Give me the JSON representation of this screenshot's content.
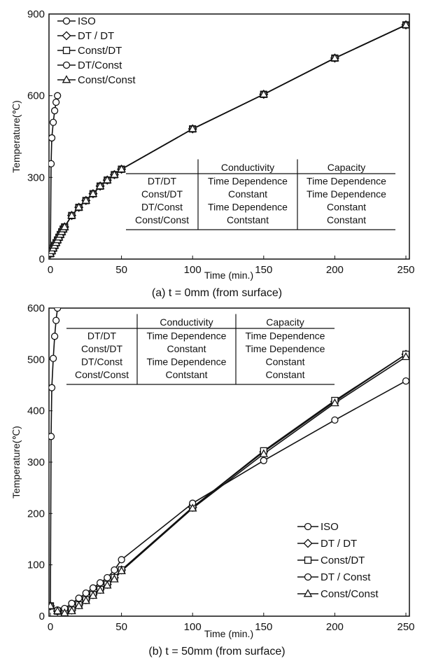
{
  "chart_data": [
    {
      "type": "line",
      "caption": "(a) t = 0mm (from surface)",
      "xlabel": "Time (min.)",
      "ylabel": "Temperature(℃)",
      "xlim": [
        0,
        250
      ],
      "ylim": [
        0,
        900
      ],
      "xticks": [
        "0",
        "50",
        "100",
        "150",
        "200",
        "250"
      ],
      "yticks": [
        "0",
        "300",
        "600",
        "900"
      ],
      "legend": {
        "position": "top-left",
        "entries": [
          {
            "label": "ISO",
            "marker": "circle"
          },
          {
            "label": "DT / DT",
            "marker": "diamond"
          },
          {
            "label": "Const/DT",
            "marker": "square"
          },
          {
            "label": "DT/Const",
            "marker": "circle"
          },
          {
            "label": "Const/Const",
            "marker": "triangle"
          }
        ]
      },
      "table": {
        "headers": [
          "",
          "Conductivity",
          "Capacity"
        ],
        "rows": [
          [
            "DT/DT",
            "Time Dependence",
            "Time Dependence"
          ],
          [
            "Const/DT",
            "Constant",
            "Time Dependence"
          ],
          [
            "DT/Const",
            "Time Dependence",
            "Constant"
          ],
          [
            "Const/Const",
            "Contstant",
            "Constant"
          ]
        ]
      },
      "series": [
        {
          "name": "ISO",
          "marker": "circle",
          "x": [
            0,
            0.5,
            1,
            2,
            3,
            4,
            5
          ],
          "y": [
            20,
            350,
            445,
            502,
            545,
            576,
            600
          ]
        },
        {
          "name": "DT / DT",
          "marker": "diamond",
          "x": [
            0,
            1,
            2,
            3,
            4,
            5,
            6,
            7,
            8,
            9,
            10,
            15,
            20,
            25,
            30,
            35,
            40,
            45,
            50,
            100,
            150,
            200,
            250
          ],
          "y": [
            20,
            30,
            40,
            50,
            60,
            70,
            80,
            90,
            100,
            110,
            118,
            160,
            190,
            215,
            240,
            268,
            290,
            310,
            330,
            478,
            605,
            738,
            860
          ]
        },
        {
          "name": "Const/DT",
          "marker": "square",
          "x": [
            0,
            1,
            2,
            3,
            4,
            5,
            6,
            7,
            8,
            9,
            10,
            15,
            20,
            25,
            30,
            35,
            40,
            45,
            50,
            100,
            150,
            200,
            250
          ],
          "y": [
            20,
            30,
            40,
            50,
            60,
            70,
            80,
            90,
            100,
            110,
            118,
            160,
            190,
            215,
            240,
            268,
            290,
            310,
            330,
            478,
            605,
            738,
            860
          ]
        },
        {
          "name": "DT/Const",
          "marker": "circle",
          "x": [
            0,
            1,
            2,
            3,
            4,
            5,
            6,
            7,
            8,
            9,
            10,
            15,
            20,
            25,
            30,
            35,
            40,
            45,
            50,
            100,
            150,
            200,
            250
          ],
          "y": [
            20,
            30,
            40,
            50,
            60,
            70,
            80,
            90,
            100,
            110,
            118,
            160,
            190,
            215,
            240,
            268,
            290,
            310,
            330,
            478,
            605,
            738,
            860
          ]
        },
        {
          "name": "Const/Const",
          "marker": "triangle",
          "x": [
            0,
            1,
            2,
            3,
            4,
            5,
            6,
            7,
            8,
            9,
            10,
            15,
            20,
            25,
            30,
            35,
            40,
            45,
            50,
            100,
            150,
            200,
            250
          ],
          "y": [
            20,
            30,
            40,
            50,
            60,
            70,
            80,
            90,
            100,
            110,
            118,
            160,
            190,
            215,
            240,
            268,
            290,
            310,
            330,
            478,
            605,
            738,
            860
          ]
        }
      ]
    },
    {
      "type": "line",
      "caption": "(b) t = 50mm (from surface)",
      "xlabel": "Time (min.)",
      "ylabel": "Temperature(℃)",
      "xlim": [
        0,
        250
      ],
      "ylim": [
        0,
        600
      ],
      "xticks": [
        "0",
        "50",
        "100",
        "150",
        "200",
        "250"
      ],
      "yticks": [
        "0",
        "100",
        "200",
        "300",
        "400",
        "500",
        "600"
      ],
      "legend": {
        "position": "bottom-right",
        "entries": [
          {
            "label": "ISO",
            "marker": "circle"
          },
          {
            "label": "DT / DT",
            "marker": "diamond"
          },
          {
            "label": "Const/DT",
            "marker": "square"
          },
          {
            "label": "DT / Const",
            "marker": "circle"
          },
          {
            "label": "Const/Const",
            "marker": "triangle"
          }
        ]
      },
      "table": {
        "headers": [
          "",
          "Conductivity",
          "Capacity"
        ],
        "rows": [
          [
            "DT/DT",
            "Time Dependence",
            "Time Dependence"
          ],
          [
            "Const/DT",
            "Constant",
            "Time Dependence"
          ],
          [
            "DT/Const",
            "Time Dependence",
            "Constant"
          ],
          [
            "Const/Const",
            "Contstant",
            "Constant"
          ]
        ]
      },
      "series": [
        {
          "name": "ISO",
          "marker": "circle",
          "x": [
            0,
            0.5,
            1,
            2,
            3,
            4,
            5
          ],
          "y": [
            20,
            350,
            445,
            502,
            545,
            576,
            600
          ]
        },
        {
          "name": "DT / DT",
          "marker": "diamond",
          "x": [
            0,
            5,
            10,
            15,
            20,
            25,
            30,
            35,
            40,
            45,
            50,
            100,
            150,
            200,
            250
          ],
          "y": [
            20,
            10,
            8,
            12,
            22,
            32,
            42,
            52,
            62,
            75,
            90,
            212,
            320,
            418,
            510
          ]
        },
        {
          "name": "Const/DT",
          "marker": "square",
          "x": [
            0,
            5,
            10,
            15,
            20,
            25,
            30,
            35,
            40,
            45,
            50,
            100,
            150,
            200,
            250
          ],
          "y": [
            20,
            10,
            8,
            12,
            22,
            32,
            42,
            52,
            62,
            75,
            90,
            212,
            322,
            420,
            510
          ]
        },
        {
          "name": "DT / Const",
          "marker": "circle",
          "x": [
            0,
            5,
            10,
            15,
            20,
            25,
            30,
            35,
            40,
            45,
            50,
            100,
            150,
            200,
            250
          ],
          "y": [
            20,
            12,
            15,
            25,
            35,
            45,
            55,
            65,
            75,
            90,
            110,
            220,
            303,
            382,
            458
          ]
        },
        {
          "name": "Const/Const",
          "marker": "triangle",
          "x": [
            0,
            5,
            10,
            15,
            20,
            25,
            30,
            35,
            40,
            45,
            50,
            100,
            150,
            200,
            250
          ],
          "y": [
            20,
            10,
            6,
            10,
            20,
            30,
            40,
            50,
            60,
            72,
            88,
            210,
            316,
            415,
            505
          ]
        }
      ]
    }
  ]
}
